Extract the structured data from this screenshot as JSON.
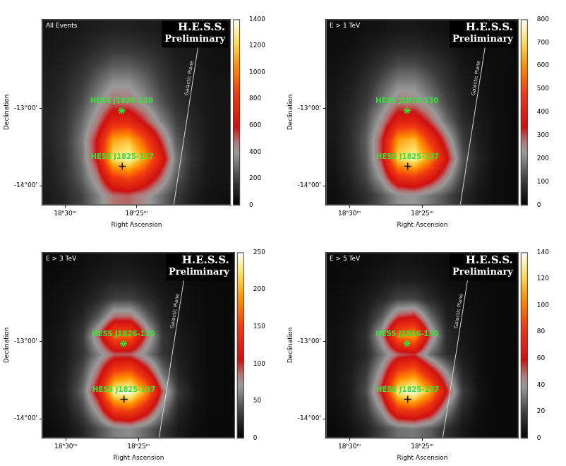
{
  "chart_data": [
    {
      "type": "heatmap",
      "title": "All Events",
      "x_label": "Right Ascension",
      "y_label": "Declination",
      "xlim": [
        277.9,
        274.6
      ],
      "xticks": [
        {
          "value": 277.5,
          "label": "18ʰ30ᵐ"
        },
        {
          "value": 276.25,
          "label": "18ʰ25ᵐ"
        }
      ],
      "ylim": [
        -14.25,
        -11.85
      ],
      "yticks": [
        {
          "value": -14,
          "label": "-14°00'"
        },
        {
          "value": -13,
          "label": "-13°00'"
        }
      ],
      "grid": false,
      "cells": {
        "x_edges": [
          277.9,
          277.625,
          277.35,
          277.075,
          276.8,
          276.525,
          276.25,
          275.975,
          275.7,
          275.425,
          275.15,
          274.875,
          274.6
        ],
        "y_edges": [
          -11.85,
          -12.09,
          -12.33,
          -12.57,
          -12.81,
          -13.05,
          -13.29,
          -13.53,
          -13.77,
          -14.01,
          -14.25
        ],
        "values": [
          [
            60,
            70,
            80,
            90,
            100,
            100,
            90,
            80,
            70,
            60,
            50,
            50
          ],
          [
            70,
            80,
            100,
            130,
            160,
            160,
            140,
            110,
            80,
            70,
            60,
            50
          ],
          [
            80,
            100,
            140,
            200,
            260,
            260,
            220,
            160,
            100,
            80,
            60,
            50
          ],
          [
            90,
            120,
            180,
            280,
            380,
            380,
            300,
            200,
            120,
            90,
            70,
            60
          ],
          [
            100,
            140,
            220,
            360,
            500,
            480,
            380,
            250,
            150,
            100,
            70,
            60
          ],
          [
            110,
            160,
            280,
            460,
            720,
            740,
            560,
            360,
            200,
            120,
            80,
            60
          ],
          [
            110,
            170,
            320,
            600,
            1100,
            1150,
            900,
            560,
            260,
            140,
            80,
            60
          ],
          [
            100,
            160,
            300,
            600,
            1250,
            1350,
            1100,
            720,
            320,
            150,
            80,
            60
          ],
          [
            90,
            150,
            260,
            460,
            820,
            900,
            760,
            520,
            260,
            130,
            70,
            60
          ],
          [
            80,
            120,
            200,
            330,
            480,
            500,
            430,
            310,
            180,
            100,
            60,
            50
          ]
        ]
      },
      "colorbar": {
        "range": [
          0,
          1400
        ],
        "ticks": [
          0,
          200,
          400,
          600,
          800,
          1000,
          1200,
          1400
        ]
      },
      "sources": [
        {
          "name": "HESS J1826-130",
          "x": 276.51,
          "y": -13.03,
          "marker": "star",
          "color": "#33dd33"
        },
        {
          "name": "HESS J1825-137",
          "x": 276.5,
          "y": -13.75,
          "marker": "cross",
          "color": "#000000"
        }
      ],
      "galactic_plane": {
        "label": "Galactic Plane",
        "x": [
          275.1,
          275.6
        ],
        "y": [
          -11.85,
          -14.25
        ]
      },
      "watermark": [
        "H.E.S.S.",
        "Preliminary"
      ]
    },
    {
      "type": "heatmap",
      "title": "E > 1 TeV",
      "x_label": "Right Ascension",
      "y_label": "Declination",
      "xlim": [
        277.9,
        274.6
      ],
      "xticks": [
        {
          "value": 277.5,
          "label": "18ʰ30ᵐ"
        },
        {
          "value": 276.25,
          "label": "18ʰ25ᵐ"
        }
      ],
      "ylim": [
        -14.25,
        -11.85
      ],
      "yticks": [
        {
          "value": -14,
          "label": "-14°00'"
        },
        {
          "value": -13,
          "label": "-13°00'"
        }
      ],
      "grid": false,
      "cells": {
        "x_edges": [
          277.9,
          277.625,
          277.35,
          277.075,
          276.8,
          276.525,
          276.25,
          275.975,
          275.7,
          275.425,
          275.15,
          274.875,
          274.6
        ],
        "y_edges": [
          -11.85,
          -12.09,
          -12.33,
          -12.57,
          -12.81,
          -13.05,
          -13.29,
          -13.53,
          -13.77,
          -14.01,
          -14.25
        ],
        "values": [
          [
            20,
            25,
            30,
            35,
            40,
            40,
            35,
            30,
            25,
            20,
            20,
            20
          ],
          [
            25,
            30,
            40,
            55,
            70,
            70,
            60,
            45,
            30,
            25,
            20,
            20
          ],
          [
            30,
            40,
            60,
            90,
            130,
            130,
            100,
            70,
            40,
            30,
            25,
            20
          ],
          [
            35,
            50,
            80,
            140,
            200,
            200,
            150,
            90,
            50,
            35,
            25,
            20
          ],
          [
            40,
            60,
            100,
            180,
            270,
            260,
            200,
            120,
            60,
            40,
            25,
            20
          ],
          [
            40,
            70,
            130,
            250,
            400,
            410,
            300,
            170,
            80,
            45,
            30,
            20
          ],
          [
            40,
            75,
            150,
            320,
            620,
            660,
            460,
            280,
            110,
            50,
            30,
            20
          ],
          [
            35,
            70,
            140,
            320,
            700,
            760,
            600,
            360,
            140,
            60,
            30,
            20
          ],
          [
            30,
            60,
            120,
            240,
            440,
            480,
            390,
            250,
            110,
            50,
            25,
            20
          ],
          [
            25,
            45,
            80,
            140,
            210,
            220,
            180,
            130,
            70,
            40,
            25,
            20
          ]
        ]
      },
      "colorbar": {
        "range": [
          0,
          800
        ],
        "ticks": [
          0,
          100,
          200,
          300,
          400,
          500,
          600,
          700,
          800
        ]
      },
      "sources": [
        {
          "name": "HESS J1826-130",
          "x": 276.51,
          "y": -13.03,
          "marker": "star",
          "color": "#33dd33"
        },
        {
          "name": "HESS J1825-137",
          "x": 276.5,
          "y": -13.75,
          "marker": "cross",
          "color": "#000000"
        }
      ],
      "galactic_plane": {
        "label": "Galactic Plane",
        "x": [
          275.1,
          275.6
        ],
        "y": [
          -11.85,
          -14.25
        ]
      },
      "watermark": [
        "H.E.S.S.",
        "Preliminary"
      ]
    },
    {
      "type": "heatmap",
      "title": "E > 3 TeV",
      "x_label": "Right Ascension",
      "y_label": "Declination",
      "xlim": [
        277.9,
        274.6
      ],
      "xticks": [
        {
          "value": 277.5,
          "label": "18ʰ30ᵐ"
        },
        {
          "value": 276.25,
          "label": "18ʰ25ᵐ"
        }
      ],
      "ylim": [
        -14.25,
        -11.85
      ],
      "yticks": [
        {
          "value": -14,
          "label": "-14°00'"
        },
        {
          "value": -13,
          "label": "-13°00'"
        }
      ],
      "grid": false,
      "cells": {
        "x_edges": [
          277.9,
          277.625,
          277.35,
          277.075,
          276.8,
          276.525,
          276.25,
          275.975,
          275.7,
          275.425,
          275.15,
          274.875,
          274.6
        ],
        "y_edges": [
          -11.85,
          -12.09,
          -12.33,
          -12.57,
          -12.81,
          -13.05,
          -13.29,
          -13.53,
          -13.77,
          -14.01,
          -14.25
        ],
        "values": [
          [
            5,
            5,
            8,
            10,
            12,
            12,
            10,
            8,
            6,
            5,
            5,
            5
          ],
          [
            6,
            8,
            10,
            14,
            18,
            18,
            14,
            10,
            8,
            6,
            5,
            5
          ],
          [
            8,
            10,
            14,
            22,
            35,
            35,
            24,
            14,
            10,
            8,
            6,
            5
          ],
          [
            8,
            12,
            20,
            45,
            90,
            90,
            50,
            20,
            12,
            8,
            6,
            5
          ],
          [
            10,
            14,
            30,
            90,
            170,
            170,
            90,
            30,
            14,
            10,
            6,
            5
          ],
          [
            10,
            14,
            28,
            60,
            90,
            90,
            60,
            30,
            16,
            10,
            6,
            5
          ],
          [
            10,
            16,
            40,
            90,
            160,
            170,
            120,
            55,
            20,
            10,
            6,
            5
          ],
          [
            10,
            18,
            50,
            120,
            240,
            250,
            190,
            90,
            30,
            12,
            6,
            5
          ],
          [
            8,
            14,
            35,
            80,
            150,
            160,
            120,
            60,
            20,
            10,
            6,
            5
          ],
          [
            6,
            10,
            20,
            40,
            60,
            65,
            50,
            30,
            14,
            8,
            5,
            5
          ]
        ]
      },
      "colorbar": {
        "range": [
          0,
          250
        ],
        "ticks": [
          0,
          50,
          100,
          150,
          200,
          250
        ]
      },
      "sources": [
        {
          "name": "HESS J1826-130",
          "x": 276.51,
          "y": -13.03,
          "marker": "star",
          "color": "#33dd33"
        },
        {
          "name": "HESS J1825-137",
          "x": 276.5,
          "y": -13.75,
          "marker": "cross",
          "color": "#000000"
        }
      ],
      "galactic_plane": {
        "label": "Galactic Plane",
        "x": [
          275.4,
          275.9
        ],
        "y": [
          -11.85,
          -14.25
        ]
      },
      "watermark": [
        "H.E.S.S.",
        "Preliminary"
      ]
    },
    {
      "type": "heatmap",
      "title": "E > 5 TeV",
      "x_label": "Right Ascension",
      "y_label": "Declination",
      "xlim": [
        277.9,
        274.6
      ],
      "xticks": [
        {
          "value": 277.5,
          "label": "18ʰ30ᵐ"
        },
        {
          "value": 276.25,
          "label": "18ʰ25ᵐ"
        }
      ],
      "ylim": [
        -14.25,
        -11.85
      ],
      "yticks": [
        {
          "value": -14,
          "label": "-14°00'"
        },
        {
          "value": -13,
          "label": "-13°00'"
        }
      ],
      "grid": false,
      "cells": {
        "x_edges": [
          277.9,
          277.625,
          277.35,
          277.075,
          276.8,
          276.525,
          276.25,
          275.975,
          275.7,
          275.425,
          275.15,
          274.875,
          274.6
        ],
        "y_edges": [
          -11.85,
          -12.09,
          -12.33,
          -12.57,
          -12.81,
          -13.05,
          -13.29,
          -13.53,
          -13.77,
          -14.01,
          -14.25
        ],
        "values": [
          [
            3,
            3,
            4,
            5,
            6,
            6,
            5,
            4,
            3,
            3,
            3,
            3
          ],
          [
            3,
            4,
            5,
            7,
            9,
            9,
            7,
            5,
            4,
            3,
            3,
            3
          ],
          [
            4,
            5,
            7,
            12,
            20,
            20,
            12,
            7,
            5,
            4,
            3,
            3
          ],
          [
            4,
            6,
            10,
            25,
            55,
            60,
            30,
            10,
            6,
            4,
            3,
            3
          ],
          [
            5,
            7,
            14,
            45,
            100,
            110,
            50,
            14,
            7,
            5,
            3,
            3
          ],
          [
            5,
            7,
            12,
            30,
            50,
            55,
            30,
            14,
            8,
            5,
            3,
            3
          ],
          [
            5,
            8,
            18,
            45,
            90,
            100,
            70,
            40,
            12,
            5,
            3,
            3
          ],
          [
            5,
            8,
            22,
            60,
            130,
            140,
            110,
            60,
            18,
            6,
            3,
            3
          ],
          [
            4,
            7,
            16,
            40,
            80,
            85,
            70,
            35,
            12,
            5,
            3,
            3
          ],
          [
            3,
            5,
            10,
            20,
            30,
            32,
            26,
            15,
            7,
            4,
            3,
            3
          ]
        ]
      },
      "colorbar": {
        "range": [
          0,
          140
        ],
        "ticks": [
          0,
          20,
          40,
          60,
          80,
          100,
          120,
          140
        ]
      },
      "sources": [
        {
          "name": "HESS J1826-130",
          "x": 276.51,
          "y": -13.03,
          "marker": "star",
          "color": "#33dd33"
        },
        {
          "name": "HESS J1825-137",
          "x": 276.5,
          "y": -13.75,
          "marker": "cross",
          "color": "#000000"
        }
      ],
      "galactic_plane": {
        "label": "Galactic Plane",
        "x": [
          275.4,
          275.9
        ],
        "y": [
          -11.85,
          -14.25
        ]
      },
      "watermark": [
        "H.E.S.S.",
        "Preliminary"
      ]
    }
  ]
}
